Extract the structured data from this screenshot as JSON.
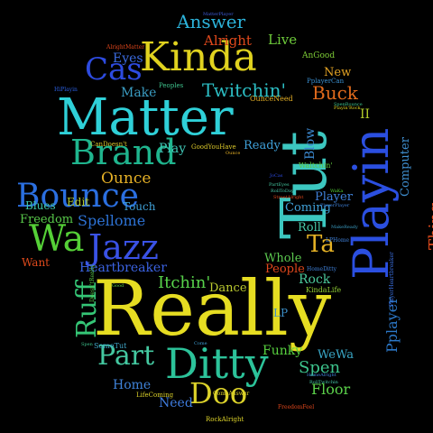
{
  "background": "#000000",
  "words": [
    {
      "text": "Really",
      "color": "#e6dd22",
      "rot": 0
    },
    {
      "text": "Tut",
      "color": "#3cc7c0",
      "rot": -90
    },
    {
      "text": "Matter",
      "color": "#2fd0d8",
      "rot": 0
    },
    {
      "text": "Kinda",
      "color": "#e0d21f",
      "rot": 0
    },
    {
      "text": "Ditty",
      "color": "#2cc39a",
      "rot": 0
    },
    {
      "text": "Playin",
      "color": "#2b4fe0",
      "rot": -90
    },
    {
      "text": "Brand",
      "color": "#1fb58e",
      "rot": 0
    },
    {
      "text": "Bounce",
      "color": "#2b6fe0",
      "rot": 0
    },
    {
      "text": "Jazz",
      "color": "#3a52e6",
      "rot": 0
    },
    {
      "text": "Wa",
      "color": "#55d037",
      "rot": 0
    },
    {
      "text": "Ruff",
      "color": "#35c676",
      "rot": -90
    },
    {
      "text": "Cas",
      "color": "#2d4be0",
      "rot": 0
    },
    {
      "text": "Answer",
      "color": "#2cb2d9",
      "rot": 0
    },
    {
      "text": "Twitchin'",
      "color": "#2cbec4",
      "rot": 0
    },
    {
      "text": "Doo",
      "color": "#dcd22a",
      "rot": 0
    },
    {
      "text": "Part",
      "color": "#44c8a0",
      "rot": 0
    },
    {
      "text": "Thing",
      "color": "#e04a1c",
      "rot": -90
    },
    {
      "text": "Pplayer",
      "color": "#2c78c8",
      "rot": -90
    },
    {
      "text": "Ta",
      "color": "#e4b125",
      "rot": 0
    },
    {
      "text": "Itchin'",
      "color": "#58d34b",
      "rot": 0
    },
    {
      "text": "Spellome",
      "color": "#2d72d4",
      "rot": 0
    },
    {
      "text": "Heartbreaker",
      "color": "#3b63e2",
      "rot": 0
    },
    {
      "text": "Buck",
      "color": "#e06a1c",
      "rot": 0
    },
    {
      "text": "Spen",
      "color": "#3dc48d",
      "rot": 0
    },
    {
      "text": "Floor",
      "color": "#5bd14a",
      "rot": 0
    },
    {
      "text": "Need",
      "color": "#3f7de0",
      "rot": 0
    },
    {
      "text": "Freedom",
      "color": "#58c84a",
      "rot": 0
    },
    {
      "text": "Blues",
      "color": "#3fc5a8",
      "rot": 0
    },
    {
      "text": "Edit",
      "color": "#b5c92a",
      "rot": 0
    },
    {
      "text": "Ounce",
      "color": "#e5b026",
      "rot": 0
    },
    {
      "text": "Eyes",
      "color": "#3b6be0",
      "rot": 0
    },
    {
      "text": "Alright",
      "color": "#e1491c",
      "rot": 0
    },
    {
      "text": "Live",
      "color": "#6dc93a",
      "rot": 0
    },
    {
      "text": "New",
      "color": "#e4a424",
      "rot": 0
    },
    {
      "text": "II",
      "color": "#b5cf2a",
      "rot": 0
    },
    {
      "text": "Make",
      "color": "#3b9ec4",
      "rot": 0
    },
    {
      "text": "Play",
      "color": "#3fc5b5",
      "rot": 0
    },
    {
      "text": "Touch",
      "color": "#3f9fd5",
      "rot": 0
    },
    {
      "text": "Ready",
      "color": "#3fa0d9",
      "rot": 0
    },
    {
      "text": "Blow",
      "color": "#3c8ad2",
      "rot": -90
    },
    {
      "text": "Coming",
      "color": "#3f9fd5",
      "rot": 0
    },
    {
      "text": "Roll",
      "color": "#47c8a8",
      "rot": 0
    },
    {
      "text": "Whole",
      "color": "#5cca50",
      "rot": 0
    },
    {
      "text": "People",
      "color": "#e0471c",
      "rot": 0
    },
    {
      "text": "Rock",
      "color": "#4bc89b",
      "rot": 0
    },
    {
      "text": "Dance",
      "color": "#bccb30",
      "rot": 0
    },
    {
      "text": "Funky",
      "color": "#58d13f",
      "rot": 0
    },
    {
      "text": "WeWa",
      "color": "#3aa8c8",
      "rot": 0
    },
    {
      "text": "Home",
      "color": "#3f82d8",
      "rot": 0
    },
    {
      "text": "Computer",
      "color": "#3f8fd0",
      "rot": -90
    },
    {
      "text": "Player",
      "color": "#3f80d8",
      "rot": 0
    },
    {
      "text": "Want",
      "color": "#e04a1c",
      "rot": 0
    },
    {
      "text": "LP",
      "color": "#3c8fc8",
      "rot": 0
    },
    {
      "text": "Waltchin'",
      "color": "#5ec83c",
      "rot": 0
    },
    {
      "text": "AnGood",
      "color": "#7dcb36",
      "rot": 0
    },
    {
      "text": "PplayerCan",
      "color": "#3a8fd0",
      "rot": 0
    },
    {
      "text": "Peoples",
      "color": "#3fc58e",
      "rot": 0
    },
    {
      "text": "OunceNeed",
      "color": "#e5b026",
      "rot": 0
    },
    {
      "text": "GoodYouHave",
      "color": "#dcc92a",
      "rot": 0
    },
    {
      "text": "CanDoesn't",
      "color": "#d9c42a",
      "rot": 0
    },
    {
      "text": "SomeTut",
      "color": "#3fa6c8",
      "rot": 0
    },
    {
      "text": "Doesn'tReally",
      "color": "#5ac84a",
      "rot": -90
    },
    {
      "text": "KindaLife",
      "color": "#8fcd34",
      "rot": 0
    },
    {
      "text": "HomeDitty",
      "color": "#3f80d8",
      "rot": 0
    },
    {
      "text": "LPHome",
      "color": "#3f80d8",
      "rot": 0
    },
    {
      "text": "LifeComing",
      "color": "#dcd22a",
      "rot": 0
    },
    {
      "text": "ComeAnswer",
      "color": "#dcd22a",
      "rot": 0
    },
    {
      "text": "RockAlright",
      "color": "#dcd22a",
      "rot": 0
    },
    {
      "text": "FreedomFeel",
      "color": "#e0471c",
      "rot": 0
    },
    {
      "text": "PlayerHeartbreaker",
      "color": "#3a6fe0",
      "rot": -90
    },
    {
      "text": "AlrightMatter",
      "color": "#e0471c",
      "rot": 0
    },
    {
      "text": "HiPlayin",
      "color": "#2b5fe0",
      "rot": 0
    },
    {
      "text": "MatterPlayer",
      "color": "#3f5fe0",
      "rot": 0
    },
    {
      "text": "Playin'Rock",
      "color": "#e0d21f",
      "rot": 0
    },
    {
      "text": "SpenBounce",
      "color": "#3dc48d",
      "rot": 0
    },
    {
      "text": "RollTwitchin",
      "color": "#47c8a8",
      "rot": 0
    },
    {
      "text": "Good",
      "color": "#5cd04a",
      "rot": 0
    },
    {
      "text": "Come",
      "color": "#3f9fd5",
      "rot": 0
    },
    {
      "text": "Ounce",
      "color": "#e5b026",
      "rot": 0
    },
    {
      "text": "Spen",
      "color": "#3dc48d",
      "rot": 0
    },
    {
      "text": "JoCas",
      "color": "#2d4be0",
      "rot": 0
    },
    {
      "text": "PartEyes",
      "color": "#44c8a0",
      "rot": 0
    },
    {
      "text": "RollToDay",
      "color": "#47c8a8",
      "rot": 0
    },
    {
      "text": "StreetAlright",
      "color": "#e0471c",
      "rot": 0
    },
    {
      "text": "HomeAlright",
      "color": "#3f80d8",
      "rot": 0
    },
    {
      "text": "PlayerPlayer",
      "color": "#3f80d8",
      "rot": 0
    },
    {
      "text": "WaKa",
      "color": "#55d037",
      "rot": 0
    },
    {
      "text": "MakeReady",
      "color": "#3b9ec4",
      "rot": 0
    }
  ]
}
